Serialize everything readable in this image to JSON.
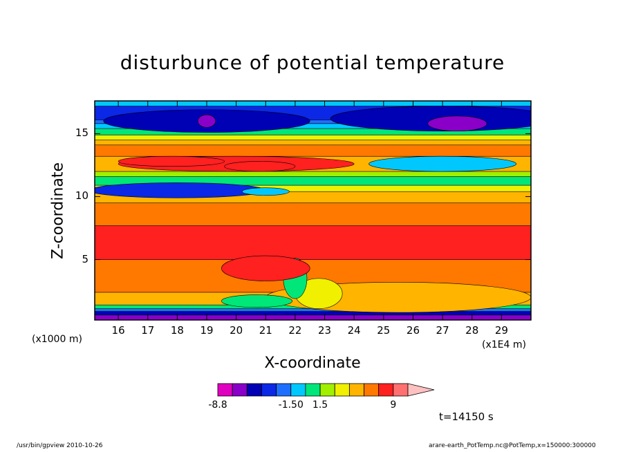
{
  "chart_data": {
    "type": "heatmap",
    "title": "disturbunce of potential temperature",
    "xlabel": "X-coordinate",
    "ylabel": "Z-coordinate",
    "x_unit_left": "(x1000 m)",
    "x_unit_right": "(x1E4 m)",
    "xlim": [
      15.2,
      30.0
    ],
    "ylim": [
      0.2,
      17.6
    ],
    "x_ticks": [
      "16",
      "17",
      "18",
      "19",
      "20",
      "21",
      "22",
      "23",
      "24",
      "25",
      "26",
      "27",
      "28",
      "29"
    ],
    "y_ticks": [
      "5",
      "10",
      "15"
    ],
    "colorbar": {
      "colors": [
        "#e000c0",
        "#8a00c8",
        "#0000b4",
        "#0a28e6",
        "#1e6eff",
        "#00c8ff",
        "#00e678",
        "#a0f000",
        "#f0f000",
        "#ffb400",
        "#ff7800",
        "#ff2020",
        "#ff7070",
        "#ffc0c0"
      ],
      "labels": [
        "-8.8",
        "-1.50",
        "1.5",
        "9"
      ]
    },
    "layers": [
      {
        "z": 0.2,
        "color": "#8a00c8"
      },
      {
        "z": 0.6,
        "color": "#0000b4"
      },
      {
        "z": 0.9,
        "color": "#1e6eff"
      },
      {
        "z": 1.1,
        "color": "#00e678"
      },
      {
        "z": 1.4,
        "color": "#ffb400"
      },
      {
        "z": 2.4,
        "color": "#ff7800"
      },
      {
        "z": 5.0,
        "color": "#ff2020"
      },
      {
        "z": 7.7,
        "color": "#ff7800"
      },
      {
        "z": 9.5,
        "color": "#ffb400"
      },
      {
        "z": 10.4,
        "color": "#f0f000"
      },
      {
        "z": 10.9,
        "color": "#00e678"
      },
      {
        "z": 11.6,
        "color": "#a0f000"
      },
      {
        "z": 12.0,
        "color": "#ffb400"
      },
      {
        "z": 13.2,
        "color": "#ff7800"
      },
      {
        "z": 14.1,
        "color": "#ffb400"
      },
      {
        "z": 14.5,
        "color": "#f0f000"
      },
      {
        "z": 14.9,
        "color": "#00e678"
      },
      {
        "z": 15.4,
        "color": "#00c8ff"
      },
      {
        "z": 15.8,
        "color": "#1e6eff"
      },
      {
        "z": 16.1,
        "color": "#0a28e6"
      },
      {
        "z": 17.2,
        "color": "#00c8ff"
      }
    ],
    "blobs": [
      {
        "cx": 20.0,
        "cz": 12.6,
        "rx": 4.0,
        "rz": 0.6,
        "color": "#ff2020"
      },
      {
        "cx": 17.8,
        "cz": 12.8,
        "rx": 1.8,
        "rz": 0.4,
        "color": "#ff2020"
      },
      {
        "cx": 20.8,
        "cz": 12.4,
        "rx": 1.2,
        "rz": 0.4,
        "color": "#ff2020"
      },
      {
        "cx": 18.0,
        "cz": 10.5,
        "rx": 3.0,
        "rz": 0.6,
        "color": "#0a28e6"
      },
      {
        "cx": 21.0,
        "cz": 10.4,
        "rx": 0.8,
        "rz": 0.3,
        "color": "#00c8ff"
      },
      {
        "cx": 27.0,
        "cz": 12.6,
        "rx": 2.5,
        "rz": 0.6,
        "color": "#00c8ff"
      },
      {
        "cx": 19.0,
        "cz": 16.0,
        "rx": 3.5,
        "rz": 0.9,
        "color": "#0000b4"
      },
      {
        "cx": 27.0,
        "cz": 16.2,
        "rx": 3.8,
        "rz": 1.0,
        "color": "#0000b4"
      },
      {
        "cx": 27.5,
        "cz": 15.8,
        "rx": 1.0,
        "rz": 0.6,
        "color": "#8a00c8"
      },
      {
        "cx": 19.0,
        "cz": 16.0,
        "rx": 0.3,
        "rz": 0.5,
        "color": "#8a00c8"
      },
      {
        "cx": 25.5,
        "cz": 2.0,
        "rx": 4.5,
        "rz": 1.2,
        "color": "#ffb400"
      },
      {
        "cx": 22.8,
        "cz": 2.3,
        "rx": 0.8,
        "rz": 1.2,
        "color": "#f0f000"
      },
      {
        "cx": 22.0,
        "cz": 3.5,
        "rx": 0.4,
        "rz": 1.6,
        "color": "#00e678"
      },
      {
        "cx": 21.0,
        "cz": 4.3,
        "rx": 1.5,
        "rz": 1.0,
        "color": "#ff2020"
      },
      {
        "cx": 20.7,
        "cz": 1.7,
        "rx": 1.2,
        "rz": 0.5,
        "color": "#00e678"
      }
    ]
  },
  "time_label": "t=14150 s",
  "footer_left": "/usr/bin/gpview  2010-10-26",
  "footer_right": "arare-earth_PotTemp.nc@PotTemp,x=150000:300000"
}
